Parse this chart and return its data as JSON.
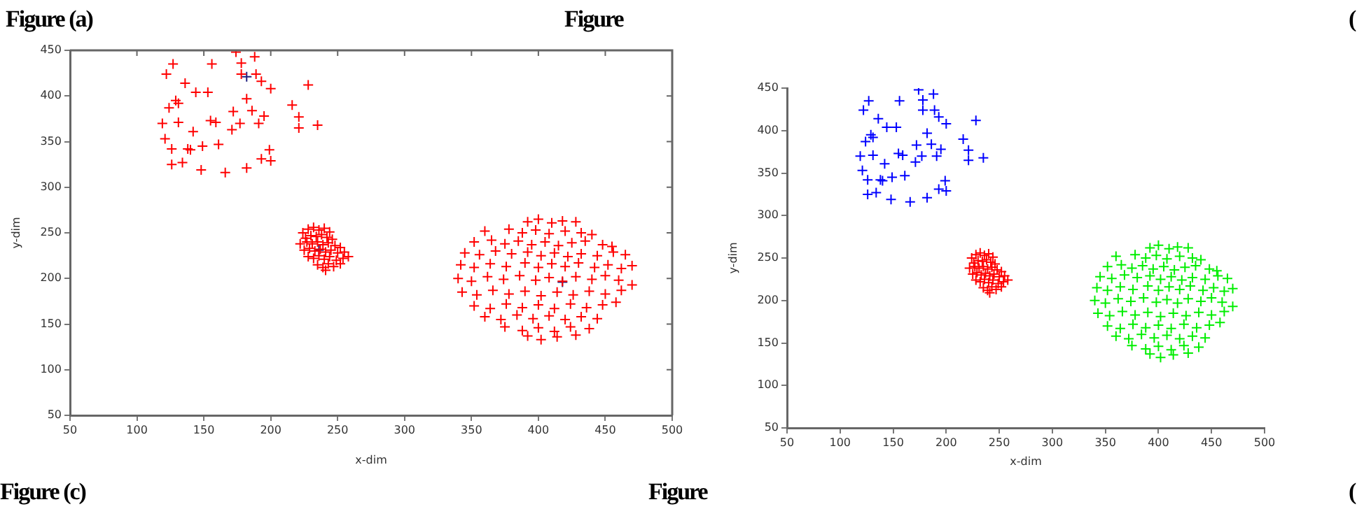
{
  "chart_data": [
    {
      "type": "scatter",
      "title": "Figure (a)",
      "xlabel": "x-dim",
      "ylabel": "y-dim",
      "xlim": [
        50,
        500
      ],
      "xticks": [
        50,
        100,
        150,
        200,
        250,
        300,
        350,
        400,
        450,
        500
      ],
      "ylim": [
        50,
        450
      ],
      "yticks": [
        50,
        100,
        150,
        200,
        250,
        300,
        350,
        400,
        450
      ],
      "marker": "cross",
      "annotations": [
        "Figure",
        "Figure (c)",
        "Figure"
      ],
      "series": [
        {
          "color": "#ff0000",
          "x": [
            127,
            122,
            156,
            174,
            188,
            178,
            178,
            189,
            193,
            200,
            228,
            136,
            144,
            153,
            129,
            124,
            131,
            182,
            216,
            221,
            235,
            221,
            119,
            121,
            131,
            142,
            155,
            159,
            172,
            177,
            171,
            186,
            195,
            191,
            126,
            138,
            149,
            140,
            161,
            199,
            193,
            200,
            126,
            134,
            148,
            166,
            182
          ],
          "values": [
            435,
            424,
            435,
            448,
            443,
            436,
            424,
            424,
            416,
            408,
            412,
            414,
            404,
            404,
            395,
            387,
            392,
            397,
            390,
            377,
            368,
            365,
            370,
            353,
            371,
            361,
            373,
            371,
            383,
            370,
            363,
            384,
            378,
            370,
            342,
            342,
            345,
            341,
            347,
            341,
            331,
            329,
            325,
            327,
            319,
            316,
            321
          ]
        },
        {
          "color": "#ff0000",
          "x": [
            224,
            228,
            232,
            236,
            240,
            244,
            226,
            230,
            234,
            238,
            242,
            246,
            222,
            227,
            231,
            235,
            239,
            243,
            248,
            252,
            225,
            229,
            233,
            237,
            241,
            245,
            250,
            255,
            228,
            232,
            236,
            240,
            244,
            249,
            254,
            258,
            235,
            239,
            243,
            247,
            252,
            241
          ],
          "values": [
            250,
            254,
            256,
            253,
            255,
            251,
            244,
            247,
            246,
            248,
            245,
            243,
            238,
            240,
            238,
            240,
            237,
            239,
            236,
            234,
            231,
            233,
            230,
            232,
            229,
            231,
            228,
            229,
            224,
            222,
            225,
            221,
            224,
            220,
            222,
            224,
            215,
            212,
            216,
            213,
            216,
            209
          ]
        },
        {
          "color": "#ff0000",
          "x": [
            392,
            400,
            410,
            418,
            428,
            360,
            378,
            388,
            398,
            408,
            420,
            432,
            440,
            352,
            365,
            375,
            385,
            395,
            405,
            415,
            425,
            435,
            448,
            455,
            345,
            356,
            368,
            380,
            392,
            402,
            412,
            422,
            432,
            444,
            456,
            465,
            342,
            352,
            364,
            376,
            390,
            400,
            410,
            420,
            430,
            442,
            452,
            462,
            470,
            340,
            350,
            362,
            374,
            386,
            398,
            408,
            418,
            428,
            440,
            450,
            460,
            470,
            343,
            354,
            366,
            378,
            390,
            402,
            414,
            426,
            438,
            450,
            462,
            352,
            364,
            376,
            388,
            400,
            412,
            424,
            436,
            448,
            458,
            360,
            372,
            384,
            396,
            408,
            420,
            432,
            444,
            375,
            388,
            400,
            412,
            424,
            438,
            392,
            402,
            414,
            428
          ],
          "values": [
            262,
            265,
            261,
            263,
            262,
            252,
            254,
            250,
            253,
            249,
            252,
            250,
            248,
            240,
            242,
            238,
            241,
            237,
            240,
            236,
            239,
            241,
            237,
            235,
            228,
            226,
            230,
            227,
            229,
            225,
            228,
            224,
            227,
            225,
            229,
            226,
            215,
            212,
            216,
            213,
            217,
            212,
            216,
            213,
            217,
            212,
            215,
            211,
            214,
            200,
            197,
            202,
            199,
            203,
            198,
            201,
            197,
            202,
            199,
            203,
            198,
            193,
            185,
            182,
            187,
            183,
            186,
            181,
            185,
            182,
            186,
            183,
            187,
            170,
            167,
            172,
            168,
            171,
            167,
            172,
            168,
            171,
            174,
            158,
            155,
            160,
            156,
            159,
            155,
            158,
            156,
            147,
            143,
            146,
            142,
            147,
            145,
            137,
            133,
            136,
            138
          ]
        },
        {
          "color": "#202080",
          "x": [
            236,
            418,
            182
          ],
          "values": [
            231,
            196,
            421
          ]
        }
      ]
    },
    {
      "type": "scatter",
      "xlabel": "x-dim",
      "ylabel": "y-dim",
      "xlim": [
        50,
        500
      ],
      "xticks": [
        50,
        100,
        150,
        200,
        250,
        300,
        350,
        400,
        450,
        500
      ],
      "ylim": [
        50,
        450
      ],
      "yticks": [
        50,
        100,
        150,
        200,
        250,
        300,
        350,
        400,
        450
      ],
      "marker": "cross",
      "annotations": [
        "(",
        "("
      ],
      "series": [
        {
          "color": "#0000ff",
          "x": [
            127,
            122,
            156,
            174,
            188,
            178,
            178,
            189,
            193,
            200,
            228,
            136,
            144,
            153,
            129,
            124,
            131,
            182,
            216,
            221,
            235,
            221,
            119,
            121,
            131,
            142,
            155,
            159,
            172,
            177,
            171,
            186,
            195,
            191,
            126,
            138,
            149,
            140,
            161,
            199,
            193,
            200,
            126,
            134,
            148,
            166,
            182
          ],
          "values": [
            435,
            424,
            435,
            448,
            443,
            436,
            424,
            424,
            416,
            408,
            412,
            414,
            404,
            404,
            395,
            387,
            392,
            397,
            390,
            377,
            368,
            365,
            370,
            353,
            371,
            361,
            373,
            371,
            383,
            370,
            363,
            384,
            378,
            370,
            342,
            342,
            345,
            341,
            347,
            341,
            331,
            329,
            325,
            327,
            319,
            316,
            321
          ]
        },
        {
          "color": "#ff0000",
          "x": [
            224,
            228,
            232,
            236,
            240,
            244,
            226,
            230,
            234,
            238,
            242,
            246,
            222,
            227,
            231,
            235,
            239,
            243,
            248,
            252,
            225,
            229,
            233,
            237,
            241,
            245,
            250,
            255,
            228,
            232,
            236,
            240,
            244,
            249,
            254,
            258,
            235,
            239,
            243,
            247,
            252,
            241
          ],
          "values": [
            250,
            254,
            256,
            253,
            255,
            251,
            244,
            247,
            246,
            248,
            245,
            243,
            238,
            240,
            238,
            240,
            237,
            239,
            236,
            234,
            231,
            233,
            230,
            232,
            229,
            231,
            228,
            229,
            224,
            222,
            225,
            221,
            224,
            220,
            222,
            224,
            215,
            212,
            216,
            213,
            216,
            209
          ]
        },
        {
          "color": "#00ee00",
          "x": [
            392,
            400,
            410,
            418,
            428,
            360,
            378,
            388,
            398,
            408,
            420,
            432,
            440,
            352,
            365,
            375,
            385,
            395,
            405,
            415,
            425,
            435,
            448,
            455,
            345,
            356,
            368,
            380,
            392,
            402,
            412,
            422,
            432,
            444,
            456,
            465,
            342,
            352,
            364,
            376,
            390,
            400,
            410,
            420,
            430,
            442,
            452,
            462,
            470,
            340,
            350,
            362,
            374,
            386,
            398,
            408,
            418,
            428,
            440,
            450,
            460,
            470,
            343,
            354,
            366,
            378,
            390,
            402,
            414,
            426,
            438,
            450,
            462,
            352,
            364,
            376,
            388,
            400,
            412,
            424,
            436,
            448,
            458,
            360,
            372,
            384,
            396,
            408,
            420,
            432,
            444,
            375,
            388,
            400,
            412,
            424,
            438,
            392,
            402,
            414,
            428
          ],
          "values": [
            262,
            265,
            261,
            263,
            262,
            252,
            254,
            250,
            253,
            249,
            252,
            250,
            248,
            240,
            242,
            238,
            241,
            237,
            240,
            236,
            239,
            241,
            237,
            235,
            228,
            226,
            230,
            227,
            229,
            225,
            228,
            224,
            227,
            225,
            229,
            226,
            215,
            212,
            216,
            213,
            217,
            212,
            216,
            213,
            217,
            212,
            215,
            211,
            214,
            200,
            197,
            202,
            199,
            203,
            198,
            201,
            197,
            202,
            199,
            203,
            198,
            193,
            185,
            182,
            187,
            183,
            186,
            181,
            185,
            182,
            186,
            183,
            187,
            170,
            167,
            172,
            168,
            171,
            167,
            172,
            168,
            171,
            174,
            158,
            155,
            160,
            156,
            159,
            155,
            158,
            156,
            147,
            143,
            146,
            142,
            147,
            145,
            137,
            133,
            136,
            138
          ]
        }
      ]
    }
  ]
}
